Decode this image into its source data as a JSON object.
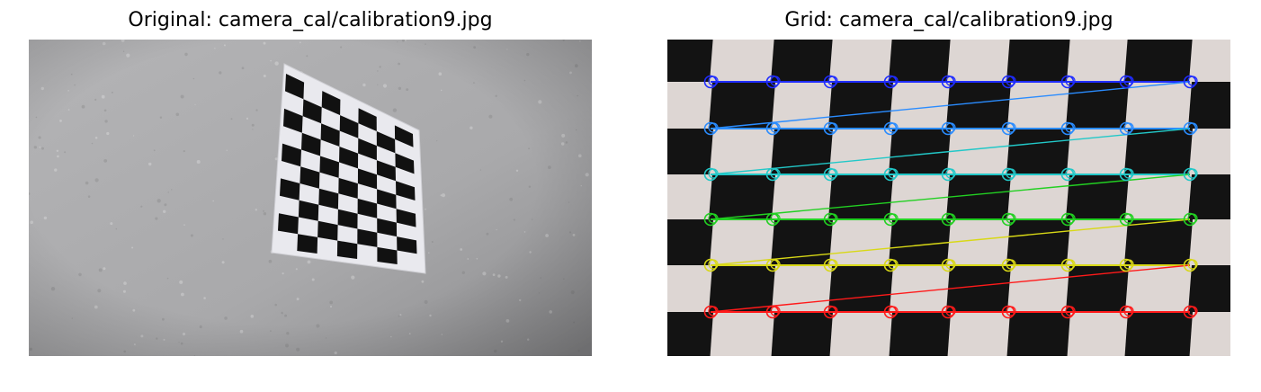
{
  "figure": {
    "left_title": "Original: camera_cal/calibration9.jpg",
    "right_title": "Grid: camera_cal/calibration9.jpg"
  },
  "left_image": {
    "subject": "checkerboard-on-wall",
    "wall_color": "#a9a9ab",
    "board_color": "#e9e9ee",
    "square_color": "#111111",
    "board_columns": 10,
    "board_rows": 7
  },
  "right_image": {
    "subject": "checkerboard-closeup",
    "light_color": "#ddd6d3",
    "dark_color": "#131313",
    "corner_rows": 6,
    "corner_columns": 9,
    "row_colors": [
      "#1f2cff",
      "#2a8cff",
      "#22c8c8",
      "#22d022",
      "#d8d816",
      "#ff1a1a"
    ]
  }
}
